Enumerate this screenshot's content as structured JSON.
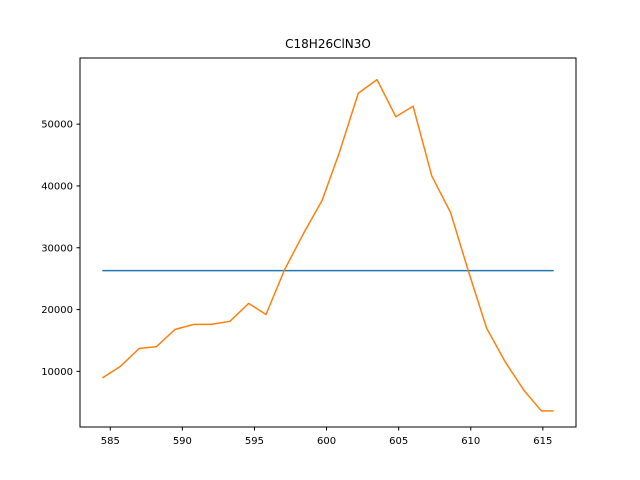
{
  "chart_data": {
    "type": "line",
    "title": "C18H26ClN3O",
    "xlabel": "",
    "ylabel": "",
    "xlim": [
      582.9,
      617.3
    ],
    "ylim": [
      1000,
      60700
    ],
    "xticks": [
      585,
      590,
      595,
      600,
      605,
      610,
      615
    ],
    "yticks": [
      10000,
      20000,
      30000,
      40000,
      50000
    ],
    "grid": false,
    "series": [
      {
        "color": "#1f77b4",
        "x": [
          584.5,
          615.7
        ],
        "y": [
          26300,
          26300
        ]
      },
      {
        "color": "#ff7f0e",
        "x": [
          584.5,
          585.7,
          587.0,
          588.2,
          589.5,
          590.8,
          592.0,
          593.3,
          594.6,
          595.8,
          597.1,
          598.4,
          599.7,
          600.9,
          602.2,
          603.5,
          604.8,
          606.0,
          607.3,
          608.6,
          609.8,
          611.1,
          612.4,
          613.7,
          614.9,
          615.7
        ],
        "y": [
          9000,
          10800,
          13700,
          14000,
          16800,
          17600,
          17600,
          18100,
          21000,
          19200,
          26500,
          32300,
          37700,
          45500,
          55000,
          57200,
          51200,
          52900,
          41600,
          35700,
          26500,
          17000,
          11500,
          6900,
          3600,
          3600
        ]
      }
    ]
  }
}
